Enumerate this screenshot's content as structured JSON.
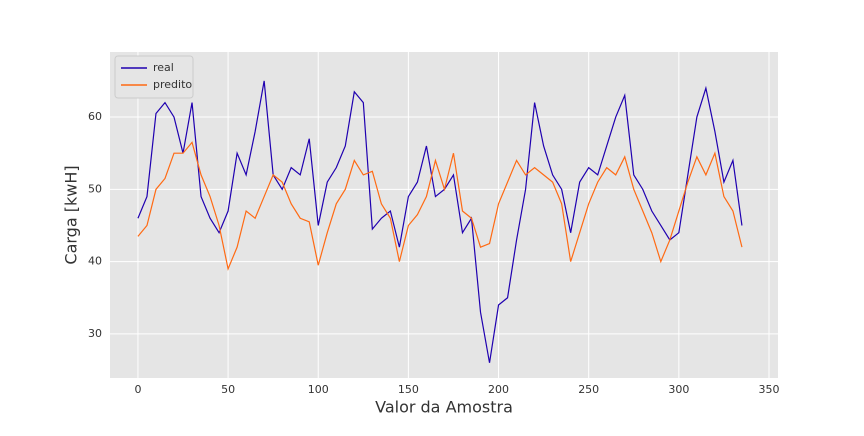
{
  "chart_data": {
    "type": "line",
    "xlabel": "Valor da Amostra",
    "ylabel": "Carga [kwH]",
    "x": [
      0,
      5,
      10,
      15,
      20,
      25,
      30,
      35,
      40,
      45,
      50,
      55,
      60,
      65,
      70,
      75,
      80,
      85,
      90,
      95,
      100,
      105,
      110,
      115,
      120,
      125,
      130,
      135,
      140,
      145,
      150,
      155,
      160,
      165,
      170,
      175,
      180,
      185,
      190,
      195,
      200,
      205,
      210,
      215,
      220,
      225,
      230,
      235,
      240,
      245,
      250,
      255,
      260,
      265,
      270,
      275,
      280,
      285,
      290,
      295,
      300,
      305,
      310,
      315,
      320,
      325,
      330,
      335
    ],
    "series": [
      {
        "name": "real",
        "color": "#1f00b0",
        "values": [
          46,
          49,
          60.5,
          62,
          60,
          55,
          62,
          49,
          46,
          44,
          47,
          55,
          52,
          58,
          65,
          52,
          50,
          53,
          52,
          57,
          45,
          51,
          53,
          56,
          63.5,
          62,
          44.5,
          46,
          47,
          42,
          49,
          51,
          56,
          49,
          50,
          52,
          44,
          46,
          33,
          26,
          34,
          35,
          43,
          50,
          62,
          56,
          52,
          50,
          44,
          51,
          53,
          52,
          56,
          60,
          63,
          52,
          50,
          47,
          45,
          43,
          44,
          52,
          60,
          64,
          58,
          51,
          54,
          45
        ]
      },
      {
        "name": "predito",
        "color": "#ff6a13",
        "values": [
          43.5,
          45,
          50,
          51.5,
          55,
          55,
          56.5,
          52,
          49,
          45,
          39,
          42,
          47,
          46,
          49,
          52,
          51,
          48,
          46,
          45.5,
          39.5,
          44,
          48,
          50,
          54,
          52,
          52.5,
          48,
          46,
          40,
          45,
          46.5,
          49,
          54,
          50,
          55,
          47,
          46,
          42,
          42.5,
          48,
          51,
          54,
          52,
          53,
          52,
          51,
          48,
          40,
          44,
          48,
          51,
          53,
          52,
          54.5,
          50,
          47,
          44,
          40,
          43,
          47,
          51,
          54.5,
          52,
          55,
          49,
          47,
          42
        ]
      }
    ],
    "xlim": [
      -15.5,
      355
    ],
    "ylim": [
      23.9,
      69
    ],
    "xticks": [
      0,
      50,
      100,
      150,
      200,
      250,
      300,
      350
    ],
    "yticks": [
      30,
      40,
      50,
      60
    ],
    "grid": true,
    "legend": "upper left"
  }
}
